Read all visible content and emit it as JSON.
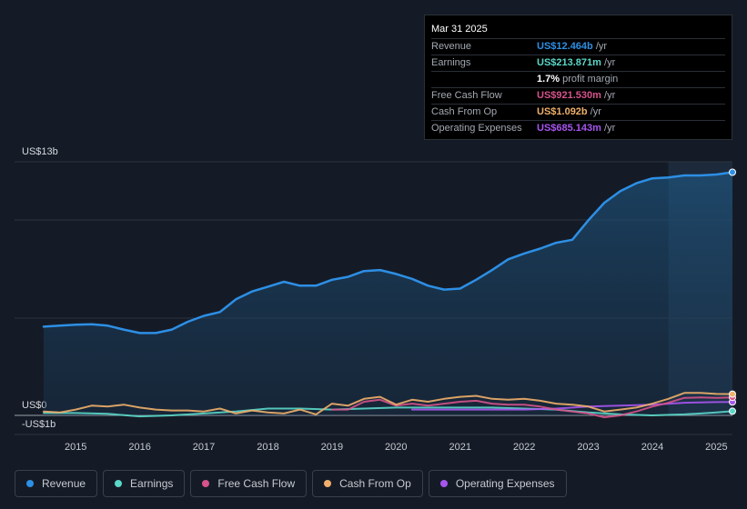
{
  "tooltip": {
    "date": "Mar 31 2025",
    "rows": [
      {
        "label": "Revenue",
        "value": "US$12.464b",
        "suffix": " /yr",
        "color": "#2d8fe5"
      },
      {
        "label": "Earnings",
        "value": "US$213.871m",
        "suffix": " /yr",
        "color": "#5ad8c9"
      },
      {
        "label": "",
        "value": "1.7%",
        "suffix": " profit margin",
        "color": "#ffffff"
      },
      {
        "label": "Free Cash Flow",
        "value": "US$921.530m",
        "suffix": " /yr",
        "color": "#d6538b"
      },
      {
        "label": "Cash From Op",
        "value": "US$1.092b",
        "suffix": " /yr",
        "color": "#f0b06b"
      },
      {
        "label": "Operating Expenses",
        "value": "US$685.143m",
        "suffix": " /yr",
        "color": "#a855f0"
      }
    ]
  },
  "legend": [
    {
      "label": "Revenue",
      "color": "#2d8fe5"
    },
    {
      "label": "Earnings",
      "color": "#5ad8c9"
    },
    {
      "label": "Free Cash Flow",
      "color": "#d6538b"
    },
    {
      "label": "Cash From Op",
      "color": "#f0b06b"
    },
    {
      "label": "Operating Expenses",
      "color": "#a855f0"
    }
  ],
  "chart_data": {
    "type": "line",
    "title": "",
    "unit": "US$b",
    "ylim": [
      -1,
      13
    ],
    "ytick_labels": [
      {
        "label": "US$13b",
        "value": 13
      },
      {
        "label": "US$0",
        "value": 0
      },
      {
        "label": "-US$1b",
        "value": -1
      }
    ],
    "xlim": [
      2014.5,
      2025.25
    ],
    "xtick_labels": [
      "2015",
      "2016",
      "2017",
      "2018",
      "2019",
      "2020",
      "2021",
      "2022",
      "2023",
      "2024",
      "2025"
    ],
    "xtick_values": [
      2015,
      2016,
      2017,
      2018,
      2019,
      2020,
      2021,
      2022,
      2023,
      2024,
      2025
    ],
    "highlight_start": 2024.25,
    "series": [
      {
        "name": "Revenue",
        "color": "#2d8fe5",
        "area": true,
        "x": [
          2014.5,
          2014.75,
          2015.0,
          2015.25,
          2015.5,
          2015.75,
          2016.0,
          2016.25,
          2016.5,
          2016.75,
          2017.0,
          2017.25,
          2017.5,
          2017.75,
          2018.0,
          2018.25,
          2018.5,
          2018.75,
          2019.0,
          2019.25,
          2019.5,
          2019.75,
          2020.0,
          2020.25,
          2020.5,
          2020.75,
          2021.0,
          2021.25,
          2021.5,
          2021.75,
          2022.0,
          2022.25,
          2022.5,
          2022.75,
          2023.0,
          2023.25,
          2023.5,
          2023.75,
          2024.0,
          2024.25,
          2024.5,
          2024.75,
          2025.0,
          2025.25
        ],
        "values": [
          4.55,
          4.6,
          4.65,
          4.67,
          4.6,
          4.4,
          4.22,
          4.22,
          4.4,
          4.8,
          5.1,
          5.3,
          5.95,
          6.35,
          6.6,
          6.85,
          6.65,
          6.65,
          6.95,
          7.1,
          7.4,
          7.45,
          7.25,
          7.0,
          6.65,
          6.45,
          6.5,
          6.95,
          7.45,
          8.0,
          8.3,
          8.55,
          8.85,
          9.0,
          10.0,
          10.9,
          11.5,
          11.9,
          12.15,
          12.2,
          12.3,
          12.3,
          12.35,
          12.464
        ]
      },
      {
        "name": "Earnings",
        "color": "#5ad8c9",
        "area": false,
        "x": [
          2014.5,
          2015.0,
          2015.5,
          2016.0,
          2016.5,
          2017.0,
          2017.5,
          2018.0,
          2018.5,
          2019.0,
          2019.5,
          2020.0,
          2020.5,
          2021.0,
          2021.5,
          2022.0,
          2022.5,
          2023.0,
          2023.5,
          2024.0,
          2024.5,
          2025.0,
          2025.25
        ],
        "values": [
          0.12,
          0.12,
          0.08,
          -0.05,
          0.0,
          0.1,
          0.2,
          0.35,
          0.35,
          0.3,
          0.35,
          0.4,
          0.4,
          0.4,
          0.4,
          0.35,
          0.3,
          0.15,
          0.05,
          0.0,
          0.05,
          0.15,
          0.214
        ]
      },
      {
        "name": "Free Cash Flow",
        "color": "#d6538b",
        "area": false,
        "x": [
          2019.0,
          2019.25,
          2019.5,
          2019.75,
          2020.0,
          2020.25,
          2020.5,
          2020.75,
          2021.0,
          2021.25,
          2021.5,
          2021.75,
          2022.0,
          2022.25,
          2022.5,
          2022.75,
          2023.0,
          2023.25,
          2023.5,
          2023.75,
          2024.0,
          2024.25,
          2024.5,
          2024.75,
          2025.0,
          2025.25
        ],
        "values": [
          0.3,
          0.3,
          0.7,
          0.8,
          0.5,
          0.6,
          0.5,
          0.6,
          0.7,
          0.75,
          0.6,
          0.55,
          0.55,
          0.45,
          0.3,
          0.2,
          0.1,
          -0.1,
          0.0,
          0.2,
          0.45,
          0.65,
          0.9,
          0.92,
          0.9,
          0.922
        ]
      },
      {
        "name": "Cash From Op",
        "color": "#f0b06b",
        "area": false,
        "x": [
          2014.5,
          2014.75,
          2015.0,
          2015.25,
          2015.5,
          2015.75,
          2016.0,
          2016.25,
          2016.5,
          2016.75,
          2017.0,
          2017.25,
          2017.5,
          2017.75,
          2018.0,
          2018.25,
          2018.5,
          2018.75,
          2019.0,
          2019.25,
          2019.5,
          2019.75,
          2020.0,
          2020.25,
          2020.5,
          2020.75,
          2021.0,
          2021.25,
          2021.5,
          2021.75,
          2022.0,
          2022.25,
          2022.5,
          2022.75,
          2023.0,
          2023.25,
          2023.5,
          2023.75,
          2024.0,
          2024.25,
          2024.5,
          2024.75,
          2025.0,
          2025.25
        ],
        "values": [
          0.2,
          0.15,
          0.3,
          0.5,
          0.45,
          0.55,
          0.4,
          0.3,
          0.25,
          0.25,
          0.2,
          0.35,
          0.1,
          0.25,
          0.15,
          0.1,
          0.3,
          0.05,
          0.6,
          0.5,
          0.85,
          0.95,
          0.55,
          0.8,
          0.7,
          0.85,
          0.95,
          1.0,
          0.85,
          0.8,
          0.85,
          0.75,
          0.6,
          0.55,
          0.45,
          0.2,
          0.3,
          0.4,
          0.6,
          0.85,
          1.15,
          1.15,
          1.1,
          1.092
        ]
      },
      {
        "name": "Operating Expenses",
        "color": "#a855f0",
        "area": false,
        "x": [
          2020.25,
          2020.5,
          2021.0,
          2021.5,
          2022.0,
          2022.5,
          2023.0,
          2023.5,
          2024.0,
          2024.5,
          2025.0,
          2025.25
        ],
        "values": [
          0.3,
          0.3,
          0.3,
          0.3,
          0.3,
          0.35,
          0.45,
          0.5,
          0.55,
          0.65,
          0.68,
          0.685
        ]
      }
    ]
  }
}
